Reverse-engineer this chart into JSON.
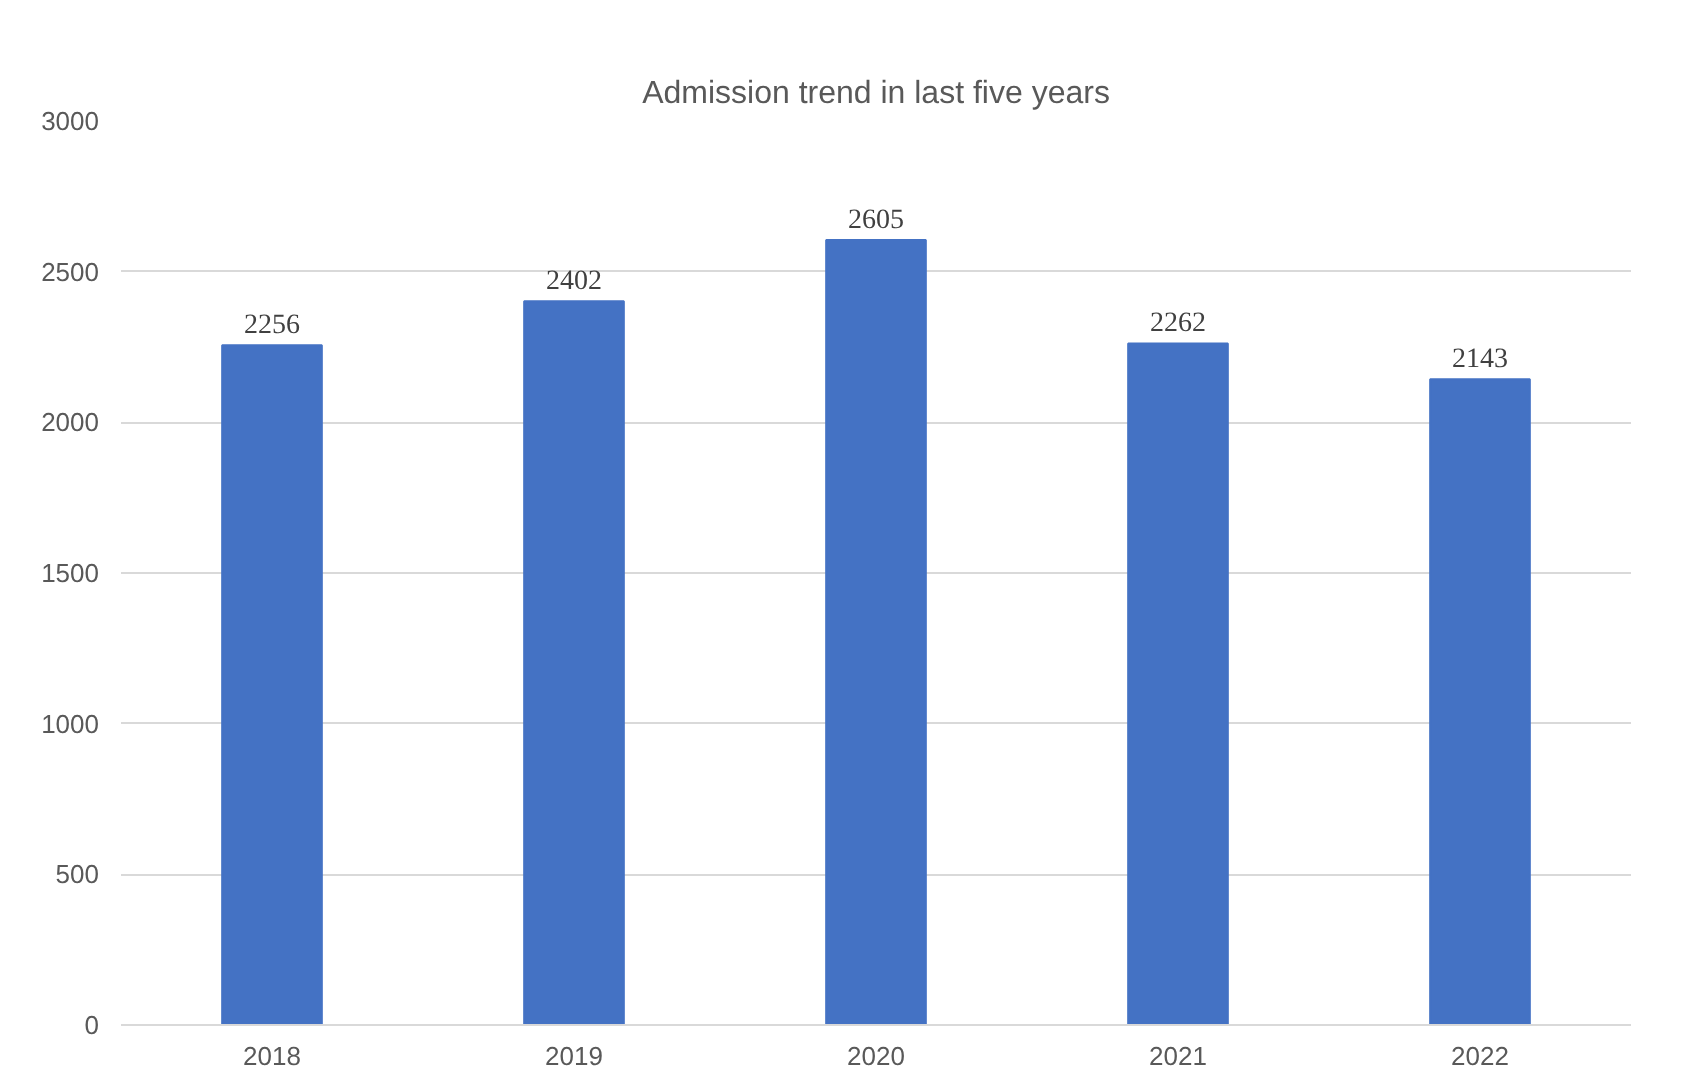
{
  "chart_data": {
    "type": "bar",
    "title": "Admission trend in last five years",
    "categories": [
      "2018",
      "2019",
      "2020",
      "2021",
      "2022"
    ],
    "values": [
      2256,
      2402,
      2605,
      2262,
      2143
    ],
    "color": "#4472c4",
    "ylim": [
      0,
      3000
    ],
    "yticks": [
      0,
      500,
      1000,
      1500,
      2000,
      2500,
      3000
    ],
    "grid": "y",
    "data_labels": true
  }
}
